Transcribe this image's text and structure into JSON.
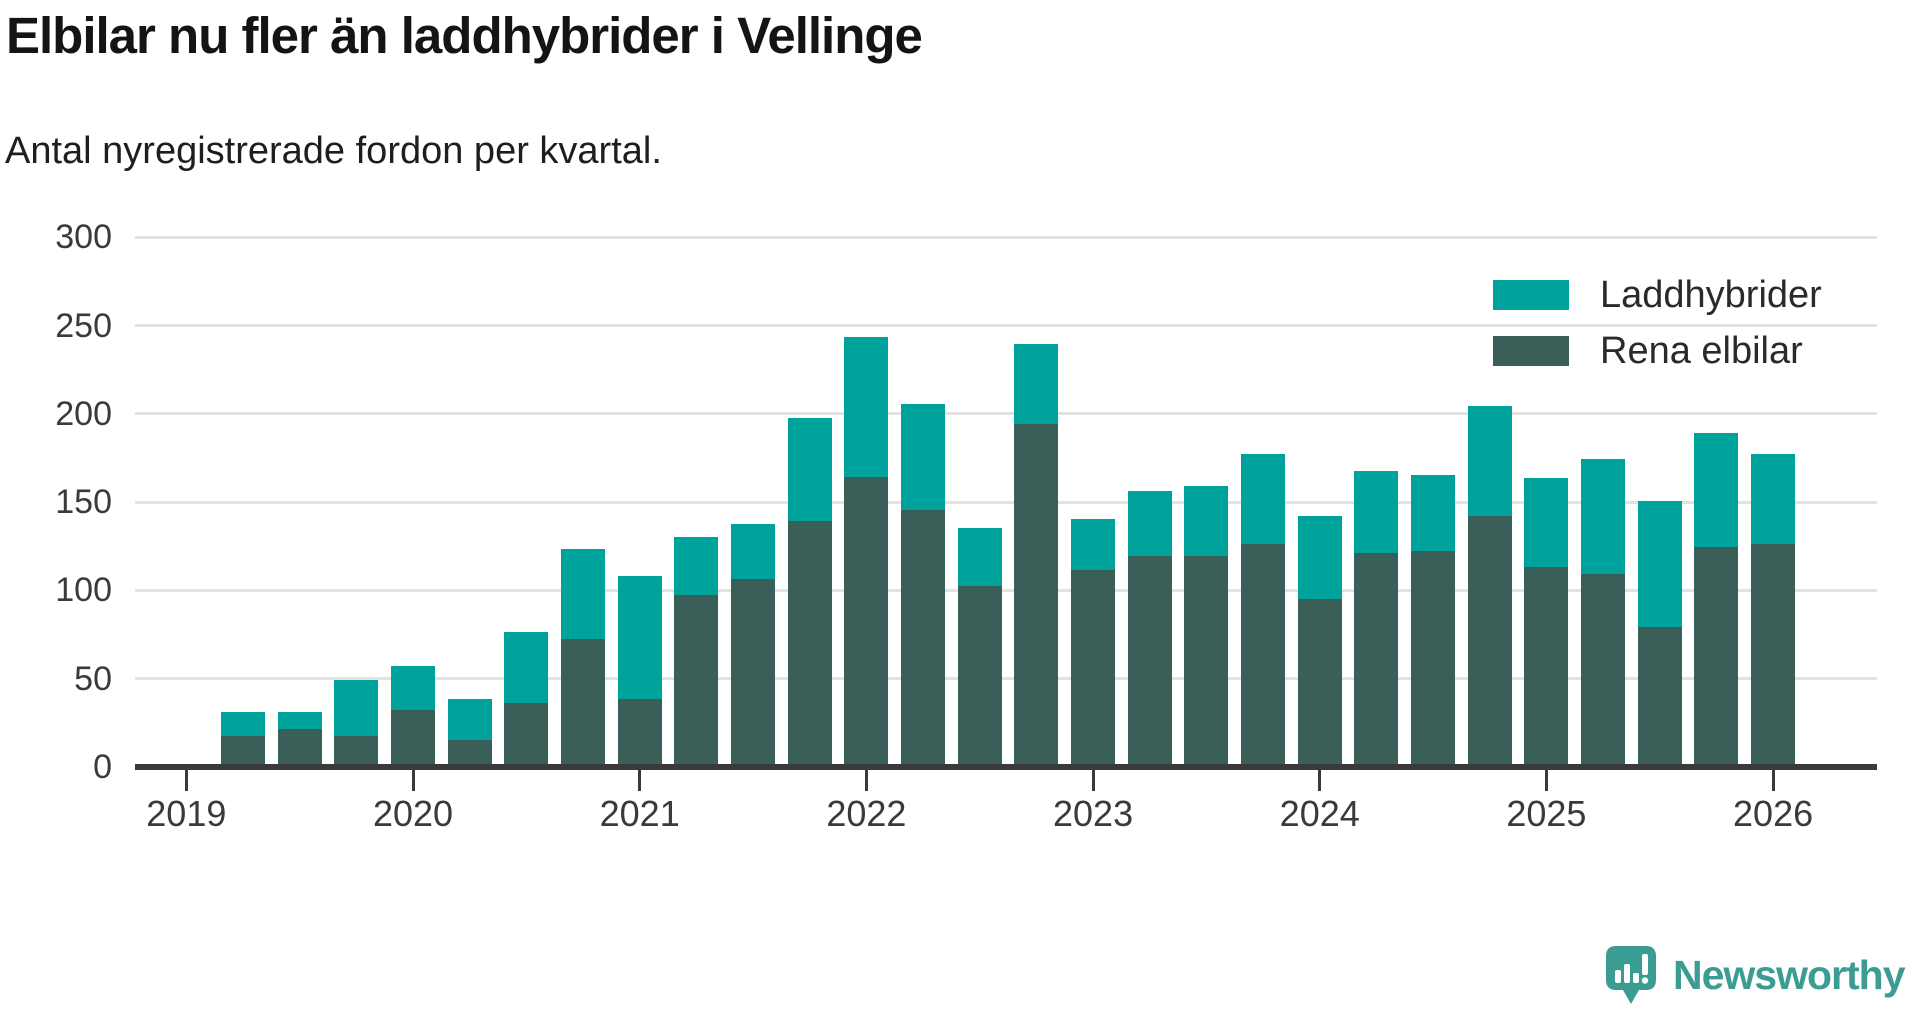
{
  "header": {
    "title": "Elbilar nu fler än laddhybrider i Vellinge",
    "subtitle": "Antal nyregistrerade fordon per kvartal."
  },
  "colors": {
    "laddhybrider": "#00a39b",
    "rena_elbilar": "#3a5f59",
    "axis": "#3a3a3a",
    "gridline": "#e2e2e2",
    "label_text": "#3a3a3a",
    "logo_teal": "#3b9c94"
  },
  "legend": [
    {
      "label": "Laddhybrider",
      "color": "#00a39b"
    },
    {
      "label": "Rena elbilar",
      "color": "#3a5f59"
    }
  ],
  "branding": {
    "name": "Newsworthy",
    "logo_icon": "speech-bubble-bar-chart"
  },
  "chart_data": {
    "type": "bar",
    "stacked": true,
    "title": "Elbilar nu fler än laddhybrider i Vellinge",
    "subtitle": "Antal nyregistrerade fordon per kvartal.",
    "categories": [
      "2019 Q2",
      "2019 Q3",
      "2019 Q4",
      "2020 Q1",
      "2020 Q2",
      "2020 Q3",
      "2020 Q4",
      "2021 Q1",
      "2021 Q2",
      "2021 Q3",
      "2021 Q4",
      "2022 Q1",
      "2022 Q2",
      "2022 Q3",
      "2022 Q4",
      "2023 Q1",
      "2023 Q2",
      "2023 Q3",
      "2023 Q4",
      "2024 Q1",
      "2024 Q2",
      "2024 Q3",
      "2024 Q4",
      "2025 Q1",
      "2025 Q2",
      "2025 Q3",
      "2025 Q4",
      "2026 Q1"
    ],
    "series": [
      {
        "name": "Rena elbilar",
        "color": "#3a5f59",
        "values": [
          18,
          22,
          18,
          33,
          16,
          37,
          73,
          39,
          98,
          107,
          140,
          165,
          146,
          103,
          195,
          112,
          120,
          120,
          127,
          96,
          122,
          123,
          143,
          114,
          110,
          80,
          125,
          127
        ]
      },
      {
        "name": "Laddhybrider",
        "color": "#00a39b",
        "values": [
          14,
          10,
          32,
          25,
          23,
          40,
          51,
          70,
          33,
          31,
          58,
          79,
          60,
          33,
          45,
          29,
          37,
          40,
          51,
          47,
          46,
          43,
          62,
          50,
          65,
          71,
          65,
          51
        ]
      }
    ],
    "x_tick_labels": [
      "2019",
      "2020",
      "2021",
      "2022",
      "2023",
      "2024",
      "2025",
      "2026"
    ],
    "xlabel": "",
    "ylabel": "",
    "ylim": [
      0,
      300
    ],
    "yticks": [
      0,
      50,
      100,
      150,
      200,
      250,
      300
    ],
    "grid": "horizontal",
    "legend_position": "top-right"
  }
}
